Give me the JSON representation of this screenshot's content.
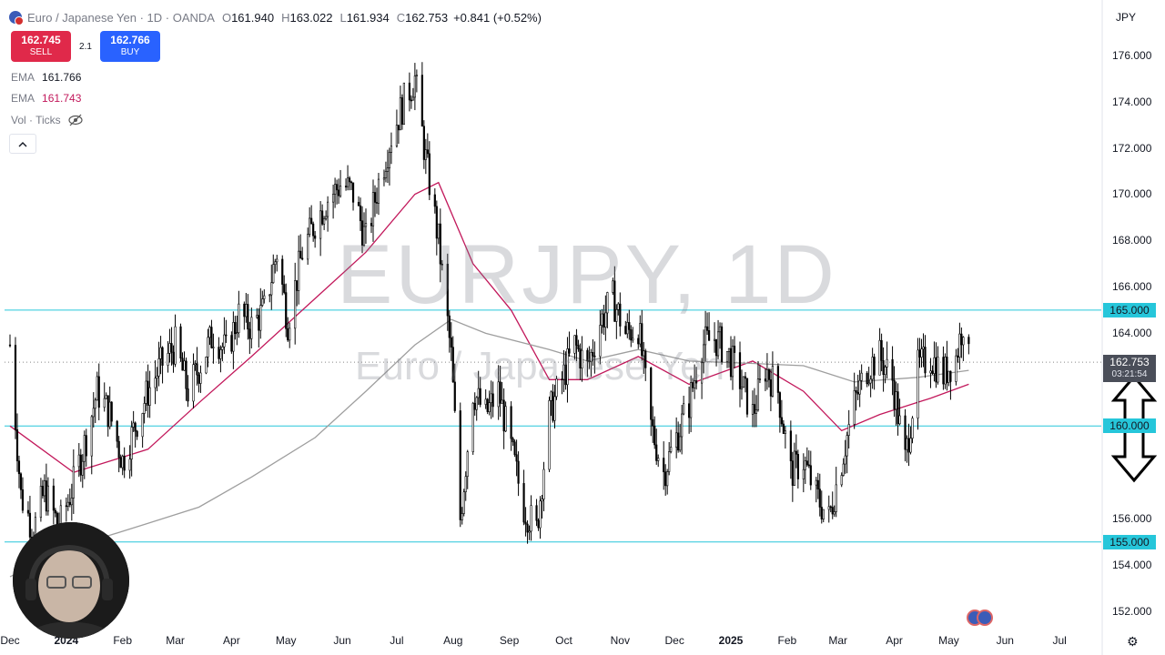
{
  "header": {
    "title": "Euro / Japanese Yen · 1D · OANDA",
    "open_label": "O",
    "open": "161.940",
    "high_label": "H",
    "high": "163.022",
    "low_label": "L",
    "low": "161.934",
    "close_label": "C",
    "close": "162.753",
    "change": "+0.841 (+0.52%)"
  },
  "trade": {
    "sell_price": "162.745",
    "sell_label": "SELL",
    "buy_price": "162.766",
    "buy_label": "BUY",
    "spread": "2.1"
  },
  "indicators": {
    "ema1_label": "EMA",
    "ema1_value": "161.766",
    "ema2_label": "EMA",
    "ema2_value": "161.743",
    "vol_label": "Vol · Ticks",
    "collapse_icon": "chevron-up-icon",
    "visibility_icon": "eye-off-icon"
  },
  "currency": "JPY",
  "watermark": {
    "symbol": "EURJPY, 1D",
    "name": "Euro / Japanese Yen"
  },
  "price_tag": {
    "price": "162.753",
    "countdown": "03:21:54"
  },
  "colors": {
    "ema_fast": "#c2185b",
    "ema_slow": "#9e9e9e",
    "level_line": "#26c6da",
    "sell": "#e0294a",
    "buy": "#2962ff",
    "candle": "#000000"
  },
  "chart_data": {
    "type": "candlestick",
    "ylim": [
      151.3,
      177.2
    ],
    "yticks": [
      "176.000",
      "174.000",
      "172.000",
      "170.000",
      "168.000",
      "166.000",
      "164.000",
      "156.000",
      "154.000",
      "152.000"
    ],
    "xticks": [
      "Dec",
      "2024",
      "Feb",
      "Mar",
      "Apr",
      "May",
      "Jun",
      "Jul",
      "Aug",
      "Sep",
      "Oct",
      "Nov",
      "Dec",
      "2025",
      "Feb",
      "Mar",
      "Apr",
      "May",
      "Jun",
      "Jul"
    ],
    "horizontal_levels": [
      "165.000",
      "160.000",
      "155.000"
    ],
    "current_price": 162.753,
    "close_path": [
      {
        "date": "2023-12-01",
        "close": 163.5
      },
      {
        "date": "2023-12-07",
        "close": 157.0
      },
      {
        "date": "2023-12-14",
        "close": 155.5
      },
      {
        "date": "2023-12-20",
        "close": 157.2
      },
      {
        "date": "2023-12-28",
        "close": 155.6
      },
      {
        "date": "2024-01-05",
        "close": 157.5
      },
      {
        "date": "2024-01-12",
        "close": 159.5
      },
      {
        "date": "2024-01-18",
        "close": 161.5
      },
      {
        "date": "2024-01-25",
        "close": 160.5
      },
      {
        "date": "2024-02-01",
        "close": 158.5
      },
      {
        "date": "2024-02-08",
        "close": 160.0
      },
      {
        "date": "2024-02-15",
        "close": 161.5
      },
      {
        "date": "2024-02-22",
        "close": 162.6
      },
      {
        "date": "2024-03-01",
        "close": 163.5
      },
      {
        "date": "2024-03-08",
        "close": 161.5
      },
      {
        "date": "2024-03-14",
        "close": 162.5
      },
      {
        "date": "2024-03-22",
        "close": 164.0
      },
      {
        "date": "2024-03-29",
        "close": 163.2
      },
      {
        "date": "2024-04-05",
        "close": 164.8
      },
      {
        "date": "2024-04-12",
        "close": 164.3
      },
      {
        "date": "2024-04-19",
        "close": 165.0
      },
      {
        "date": "2024-04-26",
        "close": 167.5
      },
      {
        "date": "2024-05-02",
        "close": 164.5
      },
      {
        "date": "2024-05-10",
        "close": 167.5
      },
      {
        "date": "2024-05-17",
        "close": 168.8
      },
      {
        "date": "2024-05-24",
        "close": 169.8
      },
      {
        "date": "2024-06-01",
        "close": 170.5
      },
      {
        "date": "2024-06-07",
        "close": 170.0
      },
      {
        "date": "2024-06-14",
        "close": 168.0
      },
      {
        "date": "2024-06-21",
        "close": 170.5
      },
      {
        "date": "2024-06-28",
        "close": 172.5
      },
      {
        "date": "2024-07-05",
        "close": 174.0
      },
      {
        "date": "2024-07-11",
        "close": 175.0
      },
      {
        "date": "2024-07-17",
        "close": 171.5
      },
      {
        "date": "2024-07-24",
        "close": 168.0
      },
      {
        "date": "2024-07-31",
        "close": 163.0
      },
      {
        "date": "2024-08-05",
        "close": 156.0
      },
      {
        "date": "2024-08-12",
        "close": 161.5
      },
      {
        "date": "2024-08-19",
        "close": 160.5
      },
      {
        "date": "2024-08-26",
        "close": 161.5
      },
      {
        "date": "2024-09-02",
        "close": 159.0
      },
      {
        "date": "2024-09-09",
        "close": 156.5
      },
      {
        "date": "2024-09-16",
        "close": 155.5
      },
      {
        "date": "2024-09-23",
        "close": 160.5
      },
      {
        "date": "2024-09-30",
        "close": 162.0
      },
      {
        "date": "2024-10-07",
        "close": 163.5
      },
      {
        "date": "2024-10-14",
        "close": 162.5
      },
      {
        "date": "2024-10-21",
        "close": 164.5
      },
      {
        "date": "2024-10-28",
        "close": 165.5
      },
      {
        "date": "2024-11-04",
        "close": 164.0
      },
      {
        "date": "2024-11-11",
        "close": 164.3
      },
      {
        "date": "2024-11-18",
        "close": 160.0
      },
      {
        "date": "2024-11-25",
        "close": 158.0
      },
      {
        "date": "2024-12-02",
        "close": 159.5
      },
      {
        "date": "2024-12-09",
        "close": 161.0
      },
      {
        "date": "2024-12-16",
        "close": 163.5
      },
      {
        "date": "2024-12-23",
        "close": 163.8
      },
      {
        "date": "2024-12-30",
        "close": 163.2
      },
      {
        "date": "2025-01-06",
        "close": 162.0
      },
      {
        "date": "2025-01-13",
        "close": 160.5
      },
      {
        "date": "2025-01-20",
        "close": 162.5
      },
      {
        "date": "2025-01-27",
        "close": 161.5
      },
      {
        "date": "2025-02-03",
        "close": 158.0
      },
      {
        "date": "2025-02-10",
        "close": 158.5
      },
      {
        "date": "2025-02-17",
        "close": 157.0
      },
      {
        "date": "2025-02-24",
        "close": 156.0
      },
      {
        "date": "2025-03-03",
        "close": 158.5
      },
      {
        "date": "2025-03-10",
        "close": 161.0
      },
      {
        "date": "2025-03-17",
        "close": 162.5
      },
      {
        "date": "2025-03-24",
        "close": 163.0
      },
      {
        "date": "2025-03-31",
        "close": 162.0
      },
      {
        "date": "2025-04-07",
        "close": 158.5
      },
      {
        "date": "2025-04-14",
        "close": 162.5
      },
      {
        "date": "2025-04-21",
        "close": 163.0
      },
      {
        "date": "2025-04-28",
        "close": 162.2
      },
      {
        "date": "2025-05-05",
        "close": 163.0
      },
      {
        "date": "2025-05-09",
        "close": 164.5
      },
      {
        "date": "2025-05-12",
        "close": 162.8
      }
    ],
    "series": [
      {
        "name": "EMA",
        "color": "#c2185b",
        "points": [
          {
            "date": "2023-12-01",
            "value": 160.0
          },
          {
            "date": "2024-01-05",
            "value": 158.0
          },
          {
            "date": "2024-02-15",
            "value": 159.0
          },
          {
            "date": "2024-03-14",
            "value": 161.0
          },
          {
            "date": "2024-04-12",
            "value": 163.0
          },
          {
            "date": "2024-05-17",
            "value": 165.5
          },
          {
            "date": "2024-06-14",
            "value": 167.5
          },
          {
            "date": "2024-07-11",
            "value": 170.0
          },
          {
            "date": "2024-07-24",
            "value": 170.5
          },
          {
            "date": "2024-08-12",
            "value": 167.0
          },
          {
            "date": "2024-09-02",
            "value": 165.0
          },
          {
            "date": "2024-09-23",
            "value": 162.0
          },
          {
            "date": "2024-10-14",
            "value": 162.0
          },
          {
            "date": "2024-11-11",
            "value": 163.0
          },
          {
            "date": "2024-12-09",
            "value": 161.8
          },
          {
            "date": "2025-01-13",
            "value": 162.8
          },
          {
            "date": "2025-02-10",
            "value": 161.5
          },
          {
            "date": "2025-03-03",
            "value": 159.8
          },
          {
            "date": "2025-03-24",
            "value": 160.5
          },
          {
            "date": "2025-04-21",
            "value": 161.2
          },
          {
            "date": "2025-05-12",
            "value": 161.8
          }
        ]
      },
      {
        "name": "EMA",
        "color": "#9e9e9e",
        "points": [
          {
            "date": "2023-12-01",
            "value": 153.5
          },
          {
            "date": "2024-01-05",
            "value": 154.8
          },
          {
            "date": "2024-02-15",
            "value": 155.8
          },
          {
            "date": "2024-03-14",
            "value": 156.5
          },
          {
            "date": "2024-04-12",
            "value": 157.8
          },
          {
            "date": "2024-05-17",
            "value": 159.5
          },
          {
            "date": "2024-06-14",
            "value": 161.5
          },
          {
            "date": "2024-07-11",
            "value": 163.5
          },
          {
            "date": "2024-07-31",
            "value": 164.6
          },
          {
            "date": "2024-08-19",
            "value": 164.0
          },
          {
            "date": "2024-09-23",
            "value": 163.3
          },
          {
            "date": "2024-10-14",
            "value": 162.8
          },
          {
            "date": "2024-11-11",
            "value": 163.3
          },
          {
            "date": "2024-12-09",
            "value": 162.8
          },
          {
            "date": "2025-01-13",
            "value": 162.7
          },
          {
            "date": "2025-02-10",
            "value": 162.6
          },
          {
            "date": "2025-03-10",
            "value": 161.9
          },
          {
            "date": "2025-04-14",
            "value": 162.1
          },
          {
            "date": "2025-05-12",
            "value": 162.4
          }
        ]
      }
    ]
  }
}
